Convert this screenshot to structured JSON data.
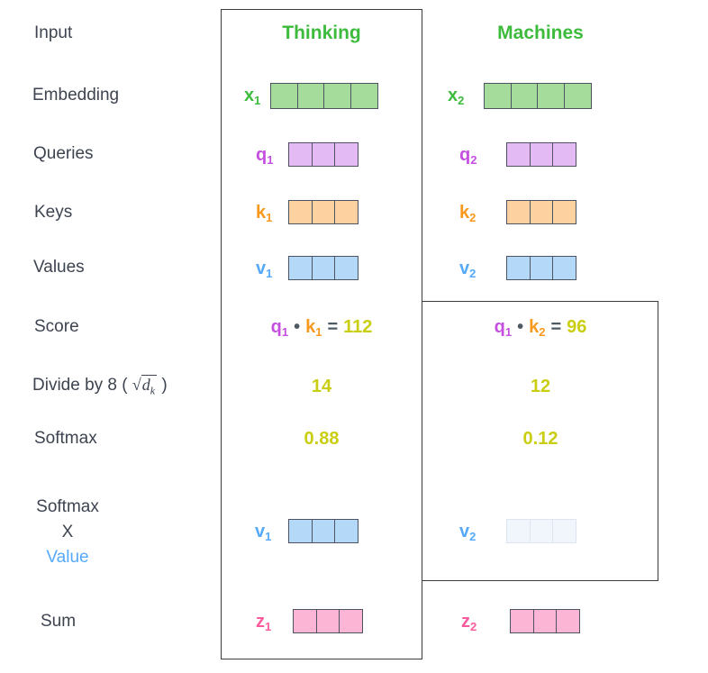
{
  "colors": {
    "green": "#3dbb3d",
    "green_fill": "#a5db9b",
    "purple": "#c44fe0",
    "purple_fill": "#e3baf3",
    "orange": "#f8981d",
    "orange_fill": "#fdd2a0",
    "blue": "#55a9f8",
    "blue_fill": "#b4d9f8",
    "pink": "#fb5b9d",
    "pink_fill": "#fdb5d6",
    "faded_fill": "#f1f6fd",
    "faded_border": "#dde5f0",
    "yellow": "#c9ce12",
    "label_gray": "#3d4450",
    "operator_gray": "#4e5a63",
    "cell_border": "#4d5360",
    "box_border": "#3c3c3c"
  },
  "left_labels": {
    "input": "Input",
    "embedding": "Embedding",
    "queries": "Queries",
    "keys": "Keys",
    "values": "Values",
    "score": "Score",
    "divide": {
      "prefix": "Divide by 8 (",
      "sqrt": "√",
      "var": "d",
      "sub": "k",
      "suffix": ")"
    },
    "softmax": "Softmax",
    "softmax_x_value": {
      "line1": "Softmax",
      "line2": "X",
      "line3": "Value"
    },
    "sum": "Sum"
  },
  "columns": [
    {
      "header": "Thinking",
      "embedding": {
        "base": "x",
        "sub": "1",
        "cells": 4
      },
      "query": {
        "base": "q",
        "sub": "1",
        "cells": 3
      },
      "key": {
        "base": "k",
        "sub": "1",
        "cells": 3
      },
      "value": {
        "base": "v",
        "sub": "1",
        "cells": 3
      },
      "score": {
        "q_base": "q",
        "q_sub": "1",
        "dot": "•",
        "k_base": "k",
        "k_sub": "1",
        "eq": "=",
        "value": "112"
      },
      "divide_value": "14",
      "softmax_value": "0.88",
      "weighted_value": {
        "base": "v",
        "sub": "1",
        "cells": 3,
        "faded": false
      },
      "sum": {
        "base": "z",
        "sub": "1",
        "cells": 3
      }
    },
    {
      "header": "Machines",
      "embedding": {
        "base": "x",
        "sub": "2",
        "cells": 4
      },
      "query": {
        "base": "q",
        "sub": "2",
        "cells": 3
      },
      "key": {
        "base": "k",
        "sub": "2",
        "cells": 3
      },
      "value": {
        "base": "v",
        "sub": "2",
        "cells": 3
      },
      "score": {
        "q_base": "q",
        "q_sub": "1",
        "dot": "•",
        "k_base": "k",
        "k_sub": "2",
        "eq": "=",
        "value": "96"
      },
      "divide_value": "12",
      "softmax_value": "0.12",
      "weighted_value": {
        "base": "v",
        "sub": "2",
        "cells": 3,
        "faded": true
      },
      "sum": {
        "base": "z",
        "sub": "2",
        "cells": 3
      }
    }
  ]
}
